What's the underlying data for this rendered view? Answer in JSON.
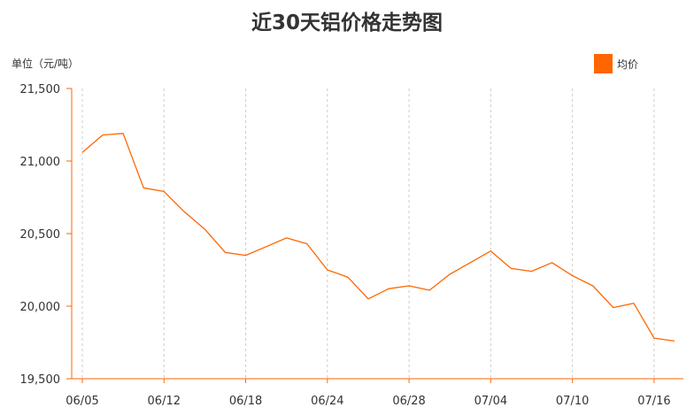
{
  "chart_data": {
    "type": "line",
    "title": "近30天铝价格走势图",
    "unit_label": "单位（元/吨）",
    "legend_position": "top-right",
    "grid": "vertical dashed",
    "series": [
      {
        "name": "均价",
        "color": "#ff6600",
        "values": [
          21060,
          21180,
          21190,
          20815,
          20790,
          20650,
          20530,
          20370,
          20350,
          20410,
          20470,
          20430,
          20250,
          20200,
          20050,
          20120,
          20140,
          20110,
          20220,
          20300,
          20380,
          20260,
          20240,
          20300,
          20210,
          20140,
          19990,
          20020,
          19780,
          19760
        ]
      }
    ],
    "x_tick_labels": [
      "06/05",
      "06/12",
      "06/18",
      "06/24",
      "06/28",
      "07/04",
      "07/10",
      "07/16"
    ],
    "x_tick_indices": [
      0,
      4,
      8,
      12,
      16,
      20,
      24,
      28
    ],
    "ylim": [
      19500,
      21500
    ],
    "y_ticks": [
      19500,
      20000,
      20500,
      21000,
      21500
    ],
    "y_tick_labels": [
      "19,500",
      "20,000",
      "20,500",
      "21,000",
      "21,500"
    ]
  }
}
